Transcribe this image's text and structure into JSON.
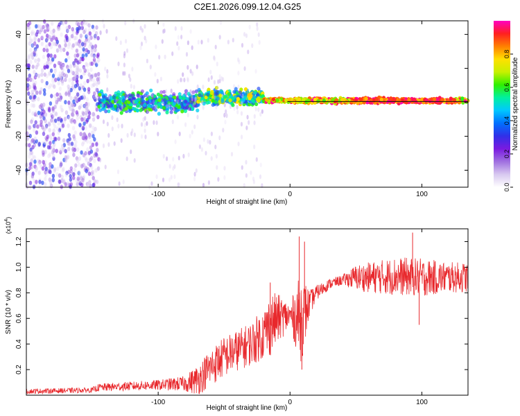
{
  "title": "C2E1.2026.099.12.04.G25",
  "chart_data": [
    {
      "type": "heatmap",
      "name": "spectrogram",
      "xlabel": "Height of straight line (km)",
      "ylabel": "Frequency (Hz)",
      "xlim": [
        -200,
        135
      ],
      "ylim": [
        -50,
        48
      ],
      "xticks": [
        -100,
        0,
        100
      ],
      "xtick_labels": [
        "-100",
        "0",
        "100"
      ],
      "yticks": [
        -40,
        -20,
        0,
        20,
        40
      ],
      "ytick_labels": [
        "-40",
        "-20",
        "0",
        "20",
        "40"
      ],
      "colorbar": {
        "label": "Normalized spectral amplitude",
        "range": [
          0,
          1
        ],
        "ticks": [
          0.0,
          0.2,
          0.4,
          0.6,
          0.8
        ],
        "tick_labels": [
          "0.0",
          "0.2",
          "0.4",
          "0.6",
          "0.8"
        ],
        "colors": [
          "#ffffff",
          "#d8c8f0",
          "#a070e0",
          "#7a1ae0",
          "#3030e8",
          "#0070ff",
          "#00c8ff",
          "#00f0a0",
          "#30f000",
          "#c8f000",
          "#ffe000",
          "#ff8000",
          "#ff2020",
          "#ff00c0"
        ]
      },
      "regions": [
        {
          "x_range": [
            -200,
            -145
          ],
          "freq_spread": 48,
          "amplitude": [
            0.05,
            0.35
          ],
          "description": "broadband noise"
        },
        {
          "x_range": [
            -145,
            -70
          ],
          "freq_center": 0,
          "freq_spread": 8,
          "amplitude": [
            0.2,
            0.65
          ]
        },
        {
          "x_range": [
            -70,
            -20
          ],
          "freq_center": 3,
          "freq_spread": 6,
          "amplitude": [
            0.3,
            0.8
          ]
        },
        {
          "x_range": [
            -20,
            135
          ],
          "freq_center": 1,
          "freq_spread": 2,
          "amplitude": [
            0.6,
            1.0
          ]
        }
      ]
    },
    {
      "type": "line",
      "name": "snr",
      "xlabel": "Height of straight line (km)",
      "ylabel": "SNR (10 * v/v)",
      "ylabel_multiplier": "(x10",
      "ylabel_multiplier_exp": "4",
      "ylabel_multiplier_close": ")",
      "xlim": [
        -200,
        135
      ],
      "ylim": [
        0,
        1.3
      ],
      "xticks": [
        -100,
        0,
        100
      ],
      "xtick_labels": [
        "-100",
        "0",
        "100"
      ],
      "yticks": [
        0.2,
        0.4,
        0.6,
        0.8,
        1.0,
        1.2
      ],
      "ytick_labels": [
        "0.2",
        "0.4",
        "0.6",
        "0.8",
        "1.0",
        "1.2"
      ],
      "series": [
        {
          "name": "SNR",
          "color": "#e8282c",
          "trend_x": [
            -200,
            -150,
            -145,
            -100,
            -80,
            -70,
            -60,
            -50,
            -40,
            -30,
            -20,
            -15,
            -10,
            0,
            8,
            10,
            15,
            20,
            30,
            40,
            50,
            60,
            80,
            100,
            120,
            135
          ],
          "trend_y": [
            0.03,
            0.04,
            0.06,
            0.08,
            0.09,
            0.12,
            0.22,
            0.3,
            0.35,
            0.4,
            0.48,
            0.55,
            0.6,
            0.62,
            0.6,
            0.62,
            0.72,
            0.8,
            0.87,
            0.9,
            0.92,
            0.92,
            0.93,
            0.92,
            0.92,
            0.92
          ],
          "noise_amplitude": [
            0.02,
            0.02,
            0.03,
            0.04,
            0.06,
            0.12,
            0.15,
            0.16,
            0.16,
            0.17,
            0.2,
            0.25,
            0.2,
            0.1,
            0.35,
            0.3,
            0.1,
            0.06,
            0.04,
            0.04,
            0.1,
            0.12,
            0.15,
            0.15,
            0.12,
            0.12
          ],
          "spikes": [
            {
              "x": -15,
              "y": 0.88
            },
            {
              "x": 7,
              "y": 1.24
            },
            {
              "x": 9,
              "y": 0.2
            },
            {
              "x": 11,
              "y": 1.2
            },
            {
              "x": 93,
              "y": 1.27
            },
            {
              "x": 98,
              "y": 0.55
            }
          ]
        }
      ]
    }
  ]
}
